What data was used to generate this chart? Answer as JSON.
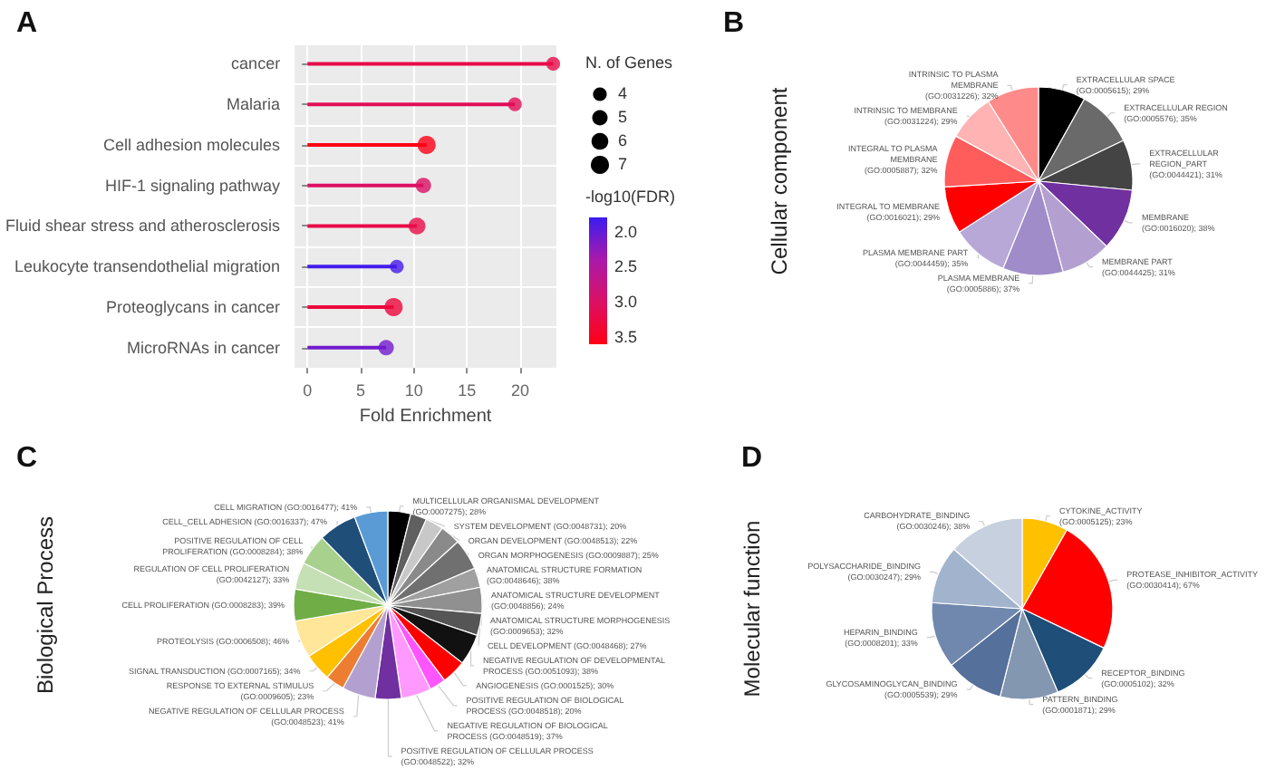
{
  "chart_data": [
    {
      "type": "lollipop",
      "title": "A",
      "orientation": "horizontal",
      "xlabel": "Fold Enrichment",
      "categories": [
        "cancer",
        "Malaria",
        "Cell adhesion molecules",
        "HIF-1 signaling pathway",
        "Fluid shear stress and atherosclerosis",
        "Leukocyte transendothelial migration",
        "Proteoglycans in cancer",
        "MicroRNAs in cancer"
      ],
      "values": [
        23.1,
        19.5,
        11.2,
        10.9,
        10.3,
        8.4,
        8.1,
        7.4
      ],
      "sizes": [
        4,
        4,
        7,
        5,
        6,
        4,
        7,
        5
      ],
      "cvalues": [
        3.2,
        3.1,
        3.6,
        3.0,
        3.2,
        1.85,
        3.3,
        2.1
      ],
      "xlim": [
        -1.2,
        23.4
      ],
      "xticks": [
        0,
        5,
        10,
        15,
        20
      ],
      "grid": true,
      "legend_title": "N. of Genes",
      "size_legend": [
        4,
        5,
        6,
        7
      ],
      "clabel": "-log10(FDR)",
      "clim": [
        1.8,
        3.6
      ],
      "cticks": [
        {
          "value": 2,
          "label": "2.0"
        },
        2.5,
        {
          "value": 3,
          "label": "3.0"
        },
        3.5
      ]
    },
    {
      "type": "pie",
      "title": "B",
      "ylabel": "Cellular component",
      "categories": [
        "EXTRACELLULAR SPACE (GO:0005615)",
        "EXTRACELLULAR REGION (GO:0005576)",
        "EXTRACELLULAR REGION_PART (GO:0044421)",
        "MEMBRANE (GO:0016020)",
        "MEMBRANE PART (GO:0044425)",
        "PLASMA MEMBRANE (GO:0005886)",
        "PLASMA MEMBRANE PART (GO:0044459)",
        "INTEGRAL TO MEMBRANE (GO:0016021)",
        "INTEGRAL TO PLASMA MEMBRANE (GO:0005887)",
        "INTRINSIC TO MEMBRANE (GO:0031224)",
        "INTRINSIC TO PLASMA MEMBRANE (GO:0031226)"
      ],
      "values": [
        29,
        35,
        31,
        38,
        31,
        37,
        35,
        29,
        32,
        29,
        32
      ],
      "value_labels": [
        "29%",
        "35%",
        "31%",
        "38%",
        "31%",
        "37%",
        "35%",
        "29%",
        "32%",
        "29%",
        "32%"
      ],
      "colors": [
        "#000000",
        "#6a6a6a",
        "#444444",
        "#7030a0",
        "#b4a0d0",
        "#a08cc8",
        "#b8a8d8",
        "#ff0000",
        "#ff5c5c",
        "#ffb3b3",
        "#ff8a8a"
      ]
    },
    {
      "type": "pie",
      "title": "C",
      "ylabel": "Biological Process",
      "categories": [
        "MULTICELLULAR ORGANISMAL DEVELOPMENT (GO:0007275)",
        "SYSTEM DEVELOPMENT (GO:0048731)",
        "ORGAN DEVELOPMENT (GO:0048513)",
        "ORGAN MORPHOGENESIS (GO:0009887)",
        "ANATOMICAL STRUCTURE FORMATION (GO:0048646)",
        "ANATOMICAL STRUCTURE DEVELOPMENT (GO:0048856)",
        "ANATOMICAL STRUCTURE MORPHOGENESIS (GO:0009653)",
        "CELL DEVELOPMENT (GO:0048468)",
        "NEGATIVE REGULATION OF DEVELOPMENTAL PROCESS (GO:0051093)",
        "ANGIOGENESIS (GO:0001525)",
        "POSITIVE REGULATION OF BIOLOGICAL PROCESS (GO:0048518)",
        "NEGATIVE REGULATION OF BIOLOGICAL PROCESS (GO:0048519)",
        "POSITIVE REGULATION OF CELLULAR PROCESS (GO:0048522)",
        "NEGATIVE REGULATION OF CELLULAR PROCESS (GO:0048523)",
        "RESPONSE TO EXTERNAL STIMULUS (GO:0009605)",
        "SIGNAL TRANSDUCTION (GO:0007165)",
        "PROTEOLYSIS (GO:0006508)",
        "CELL PROLIFERATION (GO:0008283)",
        "REGULATION OF CELL PROLIFERATION (GO:0042127)",
        "POSITIVE REGULATION OF CELL PROLIFERATION (GO:0008284)",
        "CELL_CELL ADHESION (GO:0016337)",
        "CELL MIGRATION (GO:0016477)"
      ],
      "values": [
        28,
        20,
        22,
        25,
        38,
        24,
        32,
        27,
        38,
        30,
        20,
        37,
        32,
        41,
        23,
        34,
        46,
        39,
        33,
        38,
        47,
        41
      ],
      "value_labels": [
        "28%",
        "20%",
        "22%",
        "25%",
        "38%",
        "24%",
        "32%",
        "27%",
        "38%",
        "30%",
        "20%",
        "37%",
        "32%",
        "41%",
        "23%",
        "34%",
        "46%",
        "39%",
        "33%",
        "38%",
        "47%",
        "41%"
      ],
      "colors": [
        "#000000",
        "#606060",
        "#c8c8c8",
        "#8a8a8a",
        "#707070",
        "#a0a0a0",
        "#909090",
        "#555555",
        "#111111",
        "#ff0000",
        "#ff55ff",
        "#ff99ff",
        "#7030a0",
        "#b4a0d0",
        "#ed7d31",
        "#ffc000",
        "#ffe699",
        "#70ad47",
        "#c5e0b4",
        "#a9d18e",
        "#1f4e79",
        "#5b9bd5"
      ]
    },
    {
      "type": "pie",
      "title": "D",
      "ylabel": "Molecular function",
      "categories": [
        "CYTOKINE_ACTIVITY (GO:0005125)",
        "PROTEASE_INHIBITOR_ACTIVITY (GO:0030414)",
        "RECEPTOR_BINDING (GO:0005102)",
        "PATTERN_BINDING (GO:0001871)",
        "GLYCOSAMINOGLYCAN_BINDING (GO:0005539)",
        "HEPARIN_BINDING (GO:0008201)",
        "POLYSACCHARIDE_BINDING (GO:0030247)",
        "CARBOHYDRATE_BINDING (GO:0030246)"
      ],
      "values": [
        23,
        67,
        32,
        29,
        29,
        33,
        29,
        38
      ],
      "value_labels": [
        "23%",
        "67%",
        "32%",
        "29%",
        "29%",
        "33%",
        "29%",
        "38%"
      ],
      "colors": [
        "#ffc000",
        "#ff0000",
        "#1f4e79",
        "#8497b0",
        "#55709a",
        "#7088ad",
        "#a2b4cd",
        "#c6d0de"
      ]
    }
  ]
}
